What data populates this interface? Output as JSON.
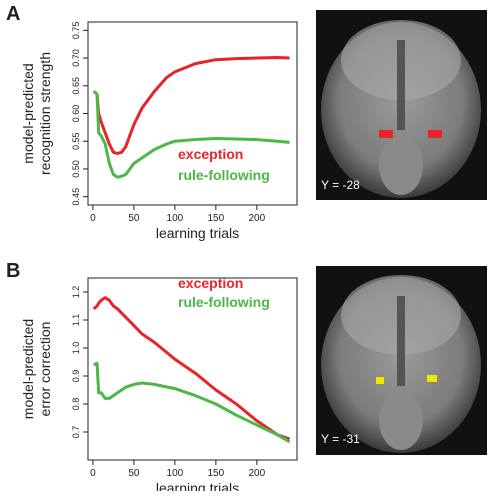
{
  "chart_data": [
    {
      "type": "line",
      "panel_label": "A",
      "image_label": "Y = -28",
      "x_label": "learning trials",
      "y_label": [
        "model-predicted",
        "recognition strength"
      ],
      "x": [
        1,
        5,
        7,
        10,
        15,
        20,
        25,
        30,
        35,
        40,
        50,
        60,
        75,
        90,
        100,
        125,
        150,
        175,
        200,
        225,
        240
      ],
      "series": [
        {
          "name": "exception",
          "color": "#e8242a",
          "values": [
            0.64,
            0.635,
            0.6,
            0.585,
            0.565,
            0.545,
            0.53,
            0.528,
            0.53,
            0.54,
            0.58,
            0.61,
            0.64,
            0.665,
            0.675,
            0.69,
            0.697,
            0.699,
            0.7,
            0.701,
            0.7
          ]
        },
        {
          "name": "rule-following",
          "color": "#4bb848",
          "values": [
            0.64,
            0.635,
            0.565,
            0.56,
            0.545,
            0.51,
            0.49,
            0.485,
            0.487,
            0.49,
            0.51,
            0.52,
            0.535,
            0.545,
            0.55,
            0.553,
            0.555,
            0.554,
            0.553,
            0.55,
            0.548
          ]
        }
      ],
      "xlim": [
        -6,
        249
      ],
      "ylim": [
        0.435,
        0.765
      ],
      "xticks": [
        0,
        50,
        100,
        150,
        200
      ],
      "yticks": [
        0.45,
        {
          "value": 0.5,
          "label": "0.50"
        },
        0.55,
        {
          "value": 0.6,
          "label": "0.60"
        },
        0.65,
        {
          "value": 0.7,
          "label": "0.70"
        },
        0.75
      ]
    },
    {
      "type": "line",
      "panel_label": "B",
      "image_label": "Y = -31",
      "x_label": "learning trials",
      "y_label": [
        "model-predicted",
        "error correction"
      ],
      "x": [
        1,
        5,
        7,
        10,
        15,
        20,
        25,
        30,
        40,
        50,
        60,
        75,
        100,
        125,
        150,
        175,
        200,
        225,
        240
      ],
      "series": [
        {
          "name": "exception",
          "color": "#e8242a",
          "values": [
            1.14,
            1.15,
            1.16,
            1.17,
            1.18,
            1.17,
            1.15,
            1.14,
            1.11,
            1.08,
            1.05,
            1.02,
            0.96,
            0.91,
            0.85,
            0.8,
            0.74,
            0.69,
            0.675
          ]
        },
        {
          "name": "rule-following",
          "color": "#4bb848",
          "values": [
            0.94,
            0.945,
            0.84,
            0.84,
            0.82,
            0.82,
            0.83,
            0.84,
            0.86,
            0.87,
            0.875,
            0.87,
            0.855,
            0.83,
            0.8,
            0.76,
            0.725,
            0.69,
            0.665
          ]
        }
      ],
      "xlim": [
        -6,
        249
      ],
      "ylim": [
        0.6,
        1.25
      ],
      "xticks": [
        0,
        50,
        100,
        150,
        200
      ],
      "yticks": [
        0.7,
        0.8,
        0.9,
        {
          "value": 1,
          "label": "1.0"
        },
        1.1,
        1.2
      ]
    }
  ]
}
